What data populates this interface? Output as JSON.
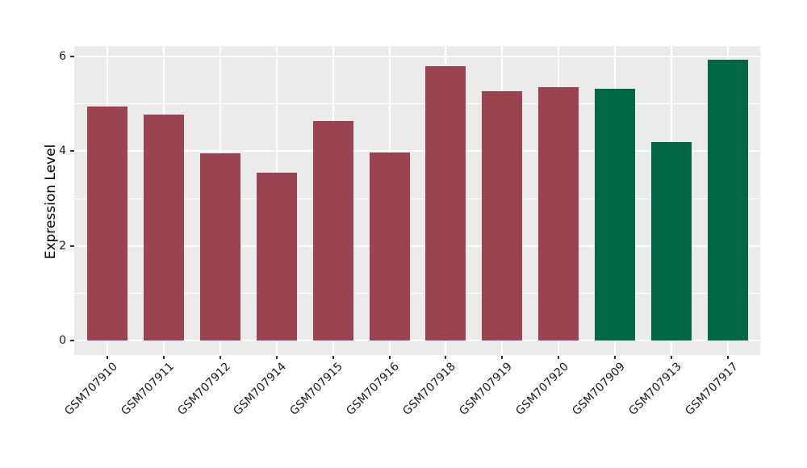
{
  "figure": {
    "background": "#FFFFFF",
    "plot_background": "#EBEBEB",
    "grid_color": "#FFFFFF",
    "tick_color": "#333333",
    "text_color": "#1A1A1A"
  },
  "chart_data": {
    "type": "bar",
    "title": "",
    "xlabel": "",
    "ylabel": "Expression Level",
    "categories": [
      "GSM707910",
      "GSM707911",
      "GSM707912",
      "GSM707914",
      "GSM707915",
      "GSM707916",
      "GSM707918",
      "GSM707919",
      "GSM707920",
      "GSM707909",
      "GSM707913",
      "GSM707917"
    ],
    "values": [
      4.94,
      4.77,
      3.96,
      3.54,
      4.64,
      3.97,
      5.8,
      5.26,
      5.35,
      5.32,
      4.2,
      5.93
    ],
    "bar_colors": [
      "#9A4451",
      "#9A4451",
      "#9A4451",
      "#9A4451",
      "#9A4451",
      "#9A4451",
      "#9A4451",
      "#9A4451",
      "#9A4451",
      "#016747",
      "#016747",
      "#016747"
    ],
    "color_groups": {
      "#9A4451": [
        "GSM707910",
        "GSM707911",
        "GSM707912",
        "GSM707914",
        "GSM707915",
        "GSM707916",
        "GSM707918",
        "GSM707919",
        "GSM707920"
      ],
      "#016747": [
        "GSM707909",
        "GSM707913",
        "GSM707917"
      ]
    },
    "yticks": [
      0,
      2,
      4,
      6
    ],
    "yticks_minor": [
      1,
      3,
      5
    ],
    "ylim": [
      -0.3,
      6.22
    ],
    "x_tick_rotation_deg": 45,
    "grid": "on",
    "legend": "none"
  }
}
